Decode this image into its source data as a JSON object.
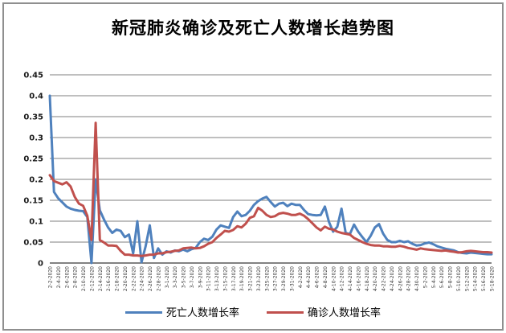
{
  "title": "新冠肺炎确诊及死亡人数增长趋势图",
  "legend": [
    {
      "label": "死亡人数增长率",
      "color": "#4F81BD"
    },
    {
      "label": "确诊人数增长率",
      "color": "#C0504D"
    }
  ],
  "chart_data": {
    "type": "line",
    "title": "新冠肺炎确诊及死亡人数增长趋势图",
    "xlabel": "",
    "ylabel": "",
    "ylim": [
      0,
      0.45
    ],
    "yticks": [
      0,
      0.05,
      0.1,
      0.15,
      0.2,
      0.25,
      0.3,
      0.35,
      0.4,
      0.45
    ],
    "grid": true,
    "gridline_color": "#7F7F7F",
    "axis_color": "#595959",
    "legend_position": "bottom",
    "x_label_every": 2,
    "x": [
      "2-2-2020",
      "2-3-2020",
      "2-4-2020",
      "2-5-2020",
      "2-6-2020",
      "2-7-2020",
      "2-8-2020",
      "2-9-2020",
      "2-10-2020",
      "2-11-2020",
      "2-12-2020",
      "2-13-2020",
      "2-14-2020",
      "2-15-2020",
      "2-16-2020",
      "2-17-2020",
      "2-18-2020",
      "2-19-2020",
      "2-20-2020",
      "2-21-2020",
      "2-22-2020",
      "2-23-2020",
      "2-24-2020",
      "2-25-2020",
      "2-26-2020",
      "2-27-2020",
      "2-28-2020",
      "2-29-2020",
      "3-1-2020",
      "3-2-2020",
      "3-3-2020",
      "3-4-2020",
      "3-5-2020",
      "3-6-2020",
      "3-7-2020",
      "3-8-2020",
      "3-9-2020",
      "3-10-2020",
      "3-11-2020",
      "3-12-2020",
      "3-13-2020",
      "3-14-2020",
      "3-15-2020",
      "3-16-2020",
      "3-17-2020",
      "3-18-2020",
      "3-19-2020",
      "3-20-2020",
      "3-21-2020",
      "3-22-2020",
      "3-23-2020",
      "3-24-2020",
      "3-25-2020",
      "3-26-2020",
      "3-27-2020",
      "3-28-2020",
      "3-29-2020",
      "3-30-2020",
      "3-31-2020",
      "4-1-2020",
      "4-2-2020",
      "4-3-2020",
      "4-4-2020",
      "4-5-2020",
      "4-6-2020",
      "4-7-2020",
      "4-8-2020",
      "4-9-2020",
      "4-10-2020",
      "4-11-2020",
      "4-12-2020",
      "4-13-2020",
      "4-14-2020",
      "4-15-2020",
      "4-16-2020",
      "4-17-2020",
      "4-18-2020",
      "4-19-2020",
      "4-20-2020",
      "4-21-2020",
      "4-22-2020",
      "4-23-2020",
      "4-24-2020",
      "4-25-2020",
      "4-26-2020",
      "4-27-2020",
      "4-28-2020",
      "4-29-2020",
      "4-30-2020",
      "5-1-2020",
      "5-2-2020",
      "5-3-2020",
      "5-4-2020",
      "5-5-2020",
      "5-6-2020",
      "5-7-2020",
      "5-8-2020",
      "5-9-2020",
      "5-10-2020",
      "5-11-2020",
      "5-12-2020",
      "5-13-2020",
      "5-14-2020",
      "5-15-2020",
      "5-16-2020",
      "5-17-2020",
      "5-18-2020"
    ],
    "series": [
      {
        "id": "death",
        "name": "死亡人数增长率",
        "color": "#4F81BD",
        "values": [
          0.4,
          0.17,
          0.155,
          0.145,
          0.135,
          0.13,
          0.127,
          0.125,
          0.124,
          0.11,
          0.0,
          0.2,
          0.126,
          0.104,
          0.085,
          0.072,
          0.08,
          0.077,
          0.062,
          0.068,
          0.023,
          0.1,
          0.002,
          0.04,
          0.09,
          0.012,
          0.035,
          0.02,
          0.028,
          0.025,
          0.03,
          0.028,
          0.032,
          0.028,
          0.033,
          0.036,
          0.05,
          0.058,
          0.055,
          0.063,
          0.08,
          0.09,
          0.087,
          0.084,
          0.11,
          0.123,
          0.112,
          0.115,
          0.125,
          0.139,
          0.148,
          0.154,
          0.158,
          0.146,
          0.135,
          0.142,
          0.144,
          0.136,
          0.142,
          0.139,
          0.139,
          0.127,
          0.117,
          0.115,
          0.114,
          0.115,
          0.135,
          0.098,
          0.075,
          0.087,
          0.13,
          0.072,
          0.069,
          0.092,
          0.075,
          0.062,
          0.05,
          0.065,
          0.085,
          0.093,
          0.07,
          0.055,
          0.05,
          0.05,
          0.053,
          0.05,
          0.052,
          0.046,
          0.042,
          0.043,
          0.047,
          0.049,
          0.045,
          0.04,
          0.037,
          0.034,
          0.032,
          0.03,
          0.026,
          0.024,
          0.023,
          0.025,
          0.024,
          0.023,
          0.022,
          0.021,
          0.021
        ]
      },
      {
        "id": "confirmed",
        "name": "确诊人数增长率",
        "color": "#C0504D",
        "values": [
          0.21,
          0.196,
          0.192,
          0.188,
          0.193,
          0.183,
          0.158,
          0.142,
          0.137,
          0.113,
          0.055,
          0.335,
          0.055,
          0.049,
          0.042,
          0.042,
          0.041,
          0.029,
          0.02,
          0.02,
          0.018,
          0.018,
          0.017,
          0.018,
          0.02,
          0.02,
          0.023,
          0.023,
          0.026,
          0.027,
          0.029,
          0.03,
          0.035,
          0.036,
          0.037,
          0.035,
          0.036,
          0.04,
          0.046,
          0.05,
          0.06,
          0.068,
          0.077,
          0.075,
          0.079,
          0.088,
          0.085,
          0.094,
          0.108,
          0.112,
          0.132,
          0.125,
          0.115,
          0.11,
          0.112,
          0.118,
          0.12,
          0.118,
          0.115,
          0.115,
          0.118,
          0.113,
          0.105,
          0.095,
          0.085,
          0.078,
          0.087,
          0.082,
          0.08,
          0.075,
          0.072,
          0.07,
          0.068,
          0.06,
          0.055,
          0.05,
          0.046,
          0.043,
          0.042,
          0.042,
          0.04,
          0.04,
          0.039,
          0.039,
          0.041,
          0.039,
          0.036,
          0.034,
          0.032,
          0.035,
          0.033,
          0.032,
          0.031,
          0.03,
          0.029,
          0.03,
          0.028,
          0.027,
          0.025,
          0.026,
          0.028,
          0.029,
          0.028,
          0.027,
          0.026,
          0.026,
          0.025
        ]
      }
    ]
  }
}
